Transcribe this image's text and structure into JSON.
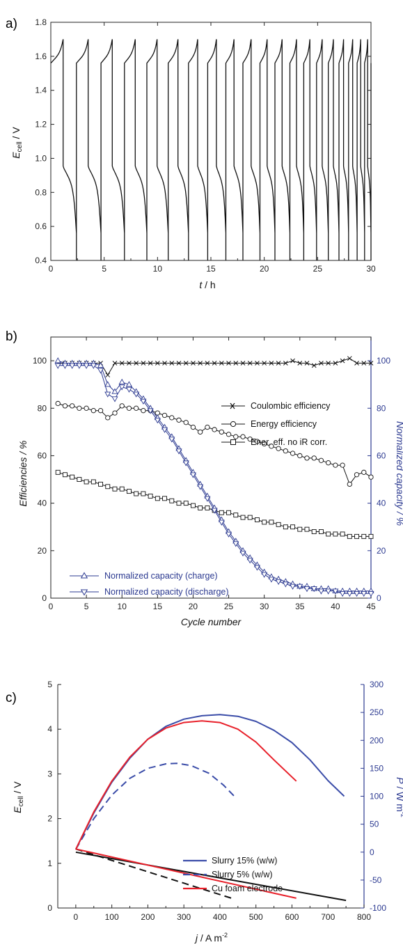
{
  "colors": {
    "black": "#111111",
    "blue": "#2b3990",
    "red": "#e8202a",
    "navy": "#3a4ca8"
  },
  "chart_data": [
    {
      "type": "line",
      "panel_label": "a)",
      "xlabel_var": "t",
      "xlabel_unit": " / h",
      "ylabel_var": "E",
      "ylabel_sub": "cell",
      "ylabel_unit": " / V",
      "xlim": [
        0,
        30
      ],
      "ylim": [
        0.4,
        1.8
      ],
      "xticks": [
        "0",
        "5",
        "10",
        "15",
        "20",
        "25",
        "30"
      ],
      "yticks": [
        "0.4",
        "0.6",
        "0.8",
        "1.0",
        "1.2",
        "1.4",
        "1.6",
        "1.8"
      ],
      "charge_start_v": 1.56,
      "charge_end_v": 1.7,
      "discharge_start_v": 0.95,
      "discharge_cutoff_v": 0.4,
      "cycle_times_h": [
        0.0,
        2.4,
        4.7,
        6.9,
        9.0,
        11.0,
        12.9,
        14.7,
        16.4,
        18.0,
        19.6,
        21.0,
        22.4,
        23.7,
        24.9,
        26.0,
        27.0,
        27.9,
        28.7,
        29.4,
        30.0
      ]
    },
    {
      "type": "line",
      "panel_label": "b)",
      "xlabel": "Cycle number",
      "ylabel": "Efficiencies / %",
      "y2label": "Normalized capacity / %",
      "xlim": [
        0,
        45
      ],
      "ylim": [
        0,
        110
      ],
      "y2lim": [
        0,
        110
      ],
      "xticks": [
        "0",
        "5",
        "10",
        "15",
        "20",
        "25",
        "30",
        "35",
        "40",
        "45"
      ],
      "yticks": [
        "0",
        "20",
        "40",
        "60",
        "80",
        "100"
      ],
      "y2ticks": [
        "0",
        "20",
        "40",
        "60",
        "80",
        "100"
      ],
      "x": [
        1,
        2,
        3,
        4,
        5,
        6,
        7,
        8,
        9,
        10,
        11,
        12,
        13,
        14,
        15,
        16,
        17,
        18,
        19,
        20,
        21,
        22,
        23,
        24,
        25,
        26,
        27,
        28,
        29,
        30,
        31,
        32,
        33,
        34,
        35,
        36,
        37,
        38,
        39,
        40,
        41,
        42,
        43,
        44,
        45
      ],
      "series": [
        {
          "name": "Coulombic efficiency",
          "marker": "x",
          "axis": "left",
          "color": "#111111",
          "values": [
            99,
            99,
            99,
            99,
            99,
            99,
            99,
            94,
            99,
            99,
            99,
            99,
            99,
            99,
            99,
            99,
            99,
            99,
            99,
            99,
            99,
            99,
            99,
            99,
            99,
            99,
            99,
            99,
            99,
            99,
            99,
            99,
            99,
            100,
            99,
            99,
            98,
            99,
            99,
            99,
            100,
            101,
            99,
            99,
            99
          ]
        },
        {
          "name": "Energy efficiency",
          "marker": "circle",
          "axis": "left",
          "color": "#111111",
          "values": [
            82,
            81,
            81,
            80,
            80,
            79,
            79,
            76,
            78,
            81,
            80,
            80,
            79,
            79,
            78,
            77,
            76,
            75,
            74,
            72,
            70,
            72,
            71,
            70,
            69,
            68,
            68,
            67,
            66,
            65,
            64,
            63,
            62,
            61,
            60,
            59,
            59,
            58,
            57,
            56,
            56,
            48,
            52,
            53,
            51
          ]
        },
        {
          "name": "Ener. eff. no iR corr.",
          "marker": "square",
          "axis": "left",
          "color": "#111111",
          "values": [
            53,
            52,
            51,
            50,
            49,
            49,
            48,
            47,
            46,
            46,
            45,
            44,
            44,
            43,
            42,
            42,
            41,
            40,
            40,
            39,
            38,
            38,
            37,
            36,
            36,
            35,
            34,
            34,
            33,
            32,
            32,
            31,
            30,
            30,
            29,
            29,
            28,
            28,
            27,
            27,
            27,
            26,
            26,
            26,
            26
          ]
        },
        {
          "name": "Normalized capacity (charge)",
          "marker": "triangle-up",
          "axis": "right",
          "color": "#2b3990",
          "values": [
            100,
            99,
            99,
            99,
            99,
            99,
            98,
            90,
            87,
            91,
            90,
            87,
            84,
            80,
            76,
            72,
            68,
            63,
            58,
            53,
            48,
            43,
            38,
            33,
            28,
            24,
            20,
            17,
            14,
            11,
            9,
            8,
            7,
            6,
            5,
            5,
            4,
            4,
            4,
            3,
            3,
            3,
            3,
            3,
            3
          ]
        },
        {
          "name": "Normalized capacity (discharge)",
          "marker": "triangle-down",
          "axis": "right",
          "color": "#2b3990",
          "values": [
            98,
            98,
            98,
            98,
            98,
            98,
            96,
            86,
            84,
            89,
            88,
            86,
            83,
            79,
            75,
            71,
            67,
            62,
            57,
            52,
            47,
            42,
            37,
            32,
            27,
            23,
            19,
            16,
            13,
            10,
            8,
            7,
            6,
            5,
            5,
            4,
            4,
            3,
            3,
            3,
            2,
            2,
            2,
            2,
            2
          ]
        }
      ]
    },
    {
      "type": "line",
      "panel_label": "c)",
      "xlabel_var": "j",
      "xlabel_unit": " / A m",
      "xlabel_sup": "-2",
      "ylabel_var": "E",
      "ylabel_sub": "cell",
      "ylabel_unit": " / V",
      "y2label_var": "P",
      "y2label_unit": " / W m",
      "y2label_sup": "-2",
      "xlim": [
        -50,
        800
      ],
      "ylim": [
        0,
        5
      ],
      "y2lim": [
        -100,
        300
      ],
      "xticks": [
        "0",
        "100",
        "200",
        "300",
        "400",
        "500",
        "600",
        "700",
        "800"
      ],
      "yticks": [
        "0",
        "1",
        "2",
        "3",
        "4",
        "5"
      ],
      "y2ticks": [
        "-100",
        "-50",
        "0",
        "50",
        "100",
        "150",
        "200",
        "250",
        "300"
      ],
      "series": [
        {
          "name": "Slurry 15% (w/w)",
          "style": "solid",
          "color": "#3a4ca8",
          "axis": "right",
          "x": [
            0,
            50,
            100,
            150,
            200,
            250,
            300,
            350,
            400,
            450,
            500,
            550,
            600,
            650,
            700,
            745
          ],
          "values": [
            5,
            70,
            125,
            168,
            202,
            225,
            238,
            244,
            246,
            243,
            234,
            218,
            196,
            165,
            128,
            100
          ]
        },
        {
          "name": "Slurry 5% (w/w)",
          "style": "dashed",
          "color": "#3a4ca8",
          "axis": "right",
          "x": [
            0,
            50,
            100,
            150,
            200,
            250,
            280,
            320,
            370,
            410,
            440
          ],
          "values": [
            5,
            60,
            102,
            132,
            150,
            158,
            159,
            155,
            141,
            120,
            100
          ]
        },
        {
          "name": "Cu foam electrode",
          "style": "solid",
          "color": "#e8202a",
          "axis": "right",
          "x": [
            0,
            50,
            100,
            150,
            200,
            250,
            300,
            350,
            400,
            450,
            500,
            550,
            612
          ],
          "values": [
            5,
            72,
            127,
            170,
            202,
            222,
            232,
            235,
            232,
            220,
            197,
            165,
            127
          ]
        },
        {
          "name": "",
          "style": "solid",
          "color": "#111111",
          "axis": "left",
          "x": [
            0,
            750
          ],
          "values": [
            1.25,
            0.17
          ]
        },
        {
          "name": "",
          "style": "dashed",
          "color": "#111111",
          "axis": "left",
          "x": [
            0,
            440
          ],
          "values": [
            1.32,
            0.2
          ]
        },
        {
          "name": "",
          "style": "solid",
          "color": "#e8202a",
          "axis": "left",
          "x": [
            0,
            612
          ],
          "values": [
            1.32,
            0.22
          ]
        }
      ]
    }
  ]
}
